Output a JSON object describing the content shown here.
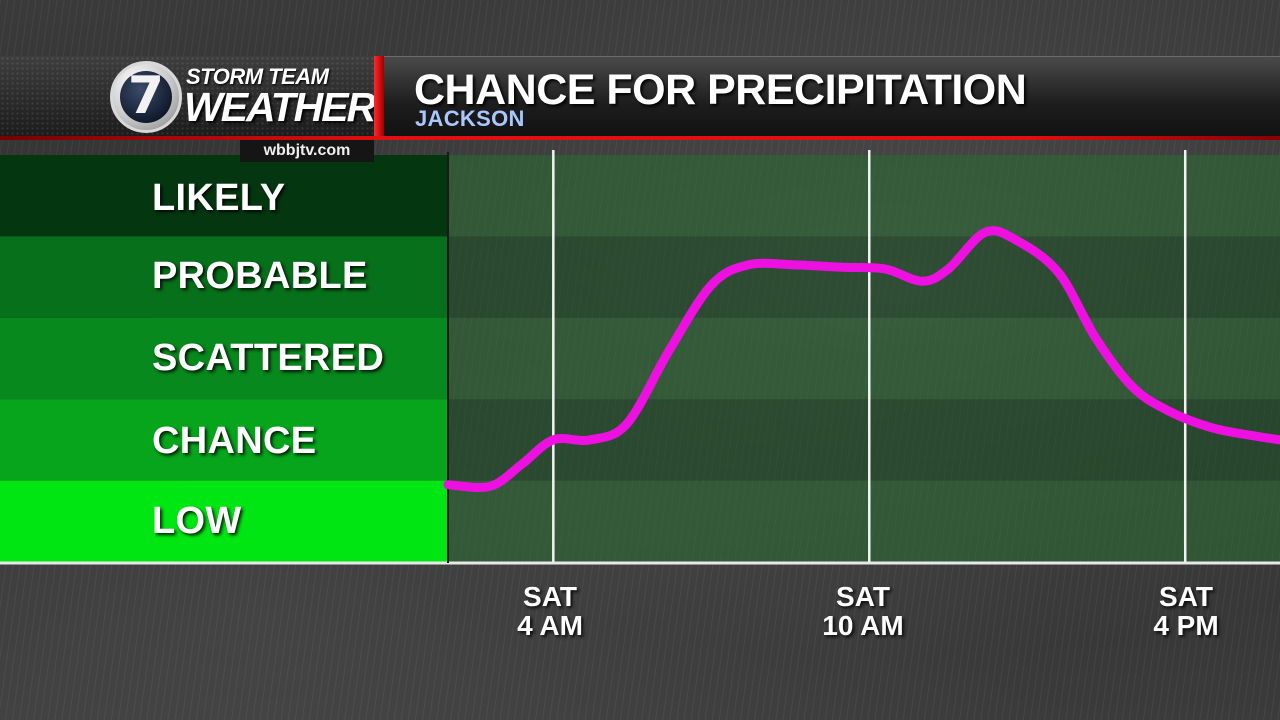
{
  "header": {
    "brand_top": "STORM TEAM",
    "brand_bottom": "WEATHER",
    "channel_number": "7",
    "website": "wbbjtv.com",
    "title": "CHANCE FOR PRECIPITATION",
    "location": "JACKSON",
    "accent_color": "#e01010"
  },
  "chart_data": {
    "type": "line",
    "title": "CHANCE FOR PRECIPITATION",
    "subtitle": "JACKSON",
    "y_categories": [
      "LOW",
      "CHANCE",
      "SCATTERED",
      "PROBABLE",
      "LIKELY"
    ],
    "y_category_colors": [
      "#00e612",
      "#06a51b",
      "#08891d",
      "#07701a",
      "#043710"
    ],
    "ylim": [
      0,
      5
    ],
    "x_ticks": [
      {
        "day": "SAT",
        "time": "4 AM",
        "hour": 4
      },
      {
        "day": "SAT",
        "time": "10 AM",
        "hour": 10
      },
      {
        "day": "SAT",
        "time": "4 PM",
        "hour": 16
      }
    ],
    "xlim": [
      2.0,
      17.8
    ],
    "series": [
      {
        "color": "#ee10e0",
        "points": [
          [
            2.0,
            0.95
          ],
          [
            2.8,
            0.93
          ],
          [
            3.4,
            1.2
          ],
          [
            4.0,
            1.5
          ],
          [
            4.7,
            1.5
          ],
          [
            5.4,
            1.7
          ],
          [
            6.2,
            2.6
          ],
          [
            7.0,
            3.4
          ],
          [
            7.7,
            3.65
          ],
          [
            8.6,
            3.65
          ],
          [
            9.5,
            3.62
          ],
          [
            10.3,
            3.6
          ],
          [
            11.0,
            3.45
          ],
          [
            11.5,
            3.6
          ],
          [
            12.2,
            4.05
          ],
          [
            12.8,
            3.95
          ],
          [
            13.6,
            3.55
          ],
          [
            14.3,
            2.75
          ],
          [
            15.0,
            2.15
          ],
          [
            15.7,
            1.85
          ],
          [
            16.5,
            1.65
          ],
          [
            17.3,
            1.55
          ],
          [
            17.8,
            1.5
          ]
        ]
      }
    ]
  }
}
